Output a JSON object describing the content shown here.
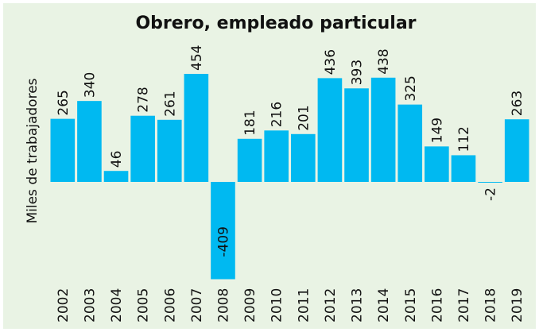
{
  "chart_data": {
    "type": "bar",
    "title": "Obrero, empleado particular",
    "ylabel": "Miles de trabajadores",
    "categories": [
      "2002",
      "2003",
      "2004",
      "2005",
      "2006",
      "2007",
      "2008",
      "2009",
      "2010",
      "2011",
      "2012",
      "2013",
      "2014",
      "2015",
      "2016",
      "2017",
      "2018",
      "2019"
    ],
    "values": [
      265,
      340,
      46,
      278,
      261,
      454,
      -409,
      181,
      216,
      201,
      436,
      393,
      438,
      325,
      149,
      112,
      -2,
      263
    ],
    "color": "#00b9f1"
  }
}
